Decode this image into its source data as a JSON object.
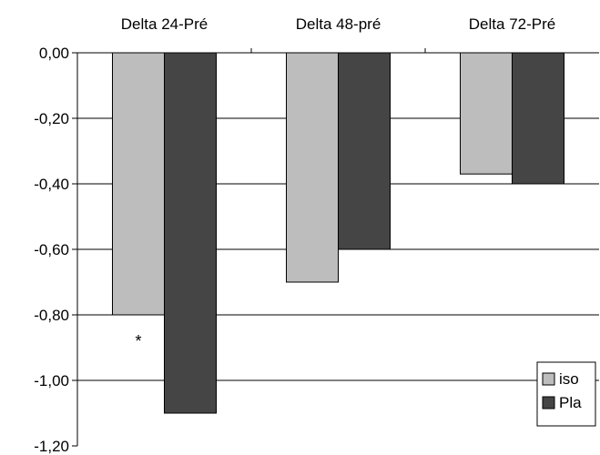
{
  "chart_data": {
    "type": "bar",
    "categories": [
      "Delta 24-Pré",
      "Delta 48-pré",
      "Delta 72-Pré"
    ],
    "series": [
      {
        "name": "iso",
        "values": [
          -0.8,
          -0.7,
          -0.37
        ],
        "color": "#bdbdbd"
      },
      {
        "name": "Pla",
        "values": [
          -1.1,
          -0.6,
          -0.4
        ],
        "color": "#454545"
      }
    ],
    "ylim": [
      -1.2,
      0.0
    ],
    "yticks": [
      0.0,
      -0.2,
      -0.4,
      -0.6,
      -0.8,
      -1.0,
      -1.2
    ],
    "ytick_labels": [
      "0,00",
      "-0,20",
      "-0,40",
      "-0,60",
      "-0,80",
      "-1,00",
      "-1,20"
    ],
    "category_labels_position": "top",
    "grid": true,
    "legend": {
      "placement": "bottom-right"
    },
    "annotations": [
      {
        "text": "*",
        "category": "Delta 24-Pré",
        "series": "iso",
        "y": -0.88
      }
    ]
  }
}
